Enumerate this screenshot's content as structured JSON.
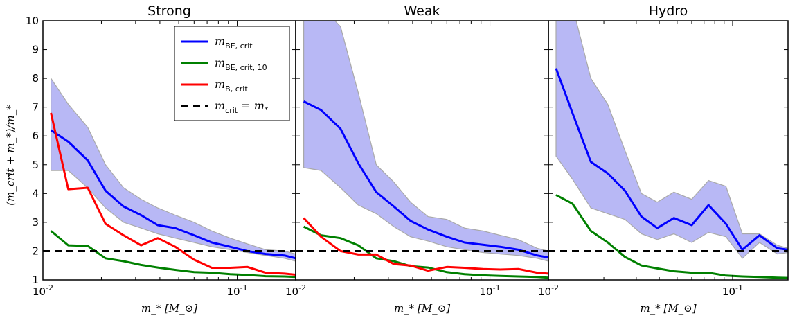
{
  "y_axis_label": "(m_crit + m_*)/m_*",
  "x_axis_label": "m_* [M_⊙]",
  "legend": {
    "entries": [
      {
        "label_main": "m",
        "label_sub": "BE, crit",
        "color": "#0000ff",
        "dashed": false
      },
      {
        "label_main": "m",
        "label_sub": "BE, crit, 10",
        "color": "#008000",
        "dashed": false
      },
      {
        "label_main": "m",
        "label_sub": "B, crit",
        "color": "#ff0000",
        "dashed": false
      },
      {
        "label_main": "m",
        "label_sub": "crit",
        "label_tail": " = m",
        "label_tail_sub": "*",
        "color": "#000000",
        "dashed": true
      }
    ],
    "placement": "top-right of first panel"
  },
  "colors": {
    "band": "#b8b8f5",
    "band_edge": "#a9a9a9"
  },
  "chart_data": [
    {
      "type": "line",
      "title": "Strong",
      "x_scale": "log",
      "xlim": [
        0.01,
        0.2
      ],
      "ylim": [
        1,
        10
      ],
      "x_ticks": [
        {
          "value": 0.01,
          "label": "10",
          "exp": "-2"
        },
        {
          "value": 0.1,
          "label": "10",
          "exp": "-1"
        }
      ],
      "y_ticks": [
        1,
        2,
        3,
        4,
        5,
        6,
        7,
        8,
        9,
        10
      ],
      "band": {
        "x": [
          0.011,
          0.0135,
          0.017,
          0.021,
          0.026,
          0.032,
          0.039,
          0.048,
          0.06,
          0.074,
          0.092,
          0.113,
          0.14,
          0.175,
          0.2
        ],
        "upper": [
          8.0,
          7.1,
          6.3,
          5.0,
          4.2,
          3.8,
          3.5,
          3.25,
          3.0,
          2.7,
          2.45,
          2.25,
          2.05,
          2.0,
          1.9
        ],
        "lower": [
          4.8,
          4.8,
          4.2,
          3.5,
          3.0,
          2.8,
          2.6,
          2.45,
          2.3,
          2.15,
          2.05,
          1.95,
          1.85,
          1.75,
          1.65
        ]
      },
      "series": [
        {
          "name": "m_BE,crit",
          "color": "#0000ff",
          "x": [
            0.011,
            0.0135,
            0.017,
            0.021,
            0.026,
            0.032,
            0.039,
            0.048,
            0.06,
            0.074,
            0.092,
            0.113,
            0.14,
            0.175,
            0.2
          ],
          "y": [
            6.2,
            5.8,
            5.15,
            4.1,
            3.55,
            3.25,
            2.9,
            2.8,
            2.55,
            2.3,
            2.15,
            2.0,
            1.9,
            1.85,
            1.75
          ]
        },
        {
          "name": "m_BE,crit,10",
          "color": "#008000",
          "x": [
            0.011,
            0.0135,
            0.017,
            0.021,
            0.026,
            0.032,
            0.039,
            0.048,
            0.06,
            0.074,
            0.092,
            0.113,
            0.14,
            0.175,
            0.2
          ],
          "y": [
            2.7,
            2.2,
            2.18,
            1.75,
            1.65,
            1.52,
            1.43,
            1.35,
            1.27,
            1.25,
            1.2,
            1.17,
            1.13,
            1.12,
            1.1
          ]
        },
        {
          "name": "m_B,crit",
          "color": "#ff0000",
          "x": [
            0.011,
            0.0135,
            0.017,
            0.021,
            0.026,
            0.032,
            0.039,
            0.048,
            0.06,
            0.074,
            0.092,
            0.113,
            0.14,
            0.175,
            0.2
          ],
          "y": [
            6.8,
            4.15,
            4.2,
            2.95,
            2.55,
            2.2,
            2.45,
            2.15,
            1.7,
            1.42,
            1.42,
            1.45,
            1.25,
            1.22,
            1.18
          ]
        }
      ],
      "hline": {
        "y": 2.0,
        "style": "dashed",
        "color": "#000000"
      }
    },
    {
      "type": "line",
      "title": "Weak",
      "x_scale": "log",
      "xlim": [
        0.01,
        0.2
      ],
      "ylim": [
        1,
        10
      ],
      "x_ticks": [
        {
          "value": 0.01,
          "label": "10",
          "exp": "-2"
        },
        {
          "value": 0.1,
          "label": "10",
          "exp": "-1"
        }
      ],
      "y_ticks": [
        1,
        2,
        3,
        4,
        5,
        6,
        7,
        8,
        9,
        10
      ],
      "band": {
        "x": [
          0.011,
          0.0135,
          0.017,
          0.021,
          0.026,
          0.032,
          0.039,
          0.048,
          0.06,
          0.074,
          0.092,
          0.113,
          0.14,
          0.175,
          0.2
        ],
        "upper": [
          10.5,
          10.5,
          9.8,
          7.5,
          5.0,
          4.4,
          3.7,
          3.2,
          3.1,
          2.8,
          2.7,
          2.55,
          2.4,
          2.1,
          2.0
        ],
        "lower": [
          4.9,
          4.8,
          4.2,
          3.6,
          3.3,
          2.85,
          2.5,
          2.35,
          2.15,
          2.05,
          1.95,
          1.9,
          1.85,
          1.75,
          1.65
        ]
      },
      "series": [
        {
          "name": "m_BE,crit",
          "color": "#0000ff",
          "x": [
            0.011,
            0.0135,
            0.017,
            0.021,
            0.026,
            0.032,
            0.039,
            0.048,
            0.06,
            0.074,
            0.092,
            0.113,
            0.14,
            0.175,
            0.2
          ],
          "y": [
            7.2,
            6.9,
            6.25,
            5.05,
            4.05,
            3.55,
            3.05,
            2.75,
            2.5,
            2.3,
            2.22,
            2.15,
            2.05,
            1.85,
            1.78
          ]
        },
        {
          "name": "m_BE,crit,10",
          "color": "#008000",
          "x": [
            0.011,
            0.0135,
            0.017,
            0.021,
            0.026,
            0.032,
            0.039,
            0.048,
            0.06,
            0.074,
            0.092,
            0.113,
            0.14,
            0.175,
            0.2
          ],
          "y": [
            2.85,
            2.55,
            2.45,
            2.2,
            1.75,
            1.65,
            1.48,
            1.43,
            1.27,
            1.2,
            1.16,
            1.14,
            1.12,
            1.1,
            1.08
          ]
        },
        {
          "name": "m_B,crit",
          "color": "#ff0000",
          "x": [
            0.011,
            0.0135,
            0.017,
            0.021,
            0.026,
            0.032,
            0.039,
            0.048,
            0.06,
            0.074,
            0.092,
            0.113,
            0.14,
            0.175,
            0.2
          ],
          "y": [
            3.15,
            2.5,
            2.0,
            1.88,
            1.88,
            1.55,
            1.5,
            1.32,
            1.45,
            1.42,
            1.38,
            1.36,
            1.38,
            1.25,
            1.22
          ]
        }
      ],
      "hline": {
        "y": 2.0,
        "style": "dashed",
        "color": "#000000"
      }
    },
    {
      "type": "line",
      "title": "Hydro",
      "x_scale": "log",
      "xlim": [
        0.01,
        0.2
      ],
      "ylim": [
        1,
        10
      ],
      "x_ticks": [
        {
          "value": 0.01,
          "label": "10",
          "exp": "-2"
        },
        {
          "value": 0.1,
          "label": "10",
          "exp": "-1"
        }
      ],
      "y_ticks": [
        1,
        2,
        3,
        4,
        5,
        6,
        7,
        8,
        9,
        10
      ],
      "band": {
        "x": [
          0.011,
          0.0135,
          0.017,
          0.021,
          0.026,
          0.032,
          0.039,
          0.048,
          0.06,
          0.074,
          0.092,
          0.113,
          0.14,
          0.175,
          0.2
        ],
        "upper": [
          10.5,
          10.5,
          8.0,
          7.1,
          5.5,
          4.0,
          3.7,
          4.05,
          3.8,
          4.45,
          4.25,
          2.6,
          2.6,
          2.2,
          2.1
        ],
        "lower": [
          5.3,
          4.5,
          3.5,
          3.3,
          3.1,
          2.6,
          2.4,
          2.6,
          2.3,
          2.65,
          2.5,
          1.75,
          2.3,
          1.9,
          1.95
        ]
      },
      "series": [
        {
          "name": "m_BE,crit",
          "color": "#0000ff",
          "x": [
            0.011,
            0.0135,
            0.017,
            0.021,
            0.026,
            0.032,
            0.039,
            0.048,
            0.06,
            0.074,
            0.092,
            0.113,
            0.14,
            0.175,
            0.2
          ],
          "y": [
            8.35,
            6.8,
            5.1,
            4.7,
            4.1,
            3.2,
            2.8,
            3.15,
            2.9,
            3.6,
            2.95,
            2.05,
            2.55,
            2.1,
            2.05
          ]
        },
        {
          "name": "m_BE,crit,10",
          "color": "#008000",
          "x": [
            0.011,
            0.0135,
            0.017,
            0.021,
            0.026,
            0.032,
            0.039,
            0.048,
            0.06,
            0.074,
            0.092,
            0.113,
            0.14,
            0.175,
            0.2
          ],
          "y": [
            3.95,
            3.65,
            2.7,
            2.3,
            1.8,
            1.5,
            1.4,
            1.3,
            1.25,
            1.25,
            1.15,
            1.12,
            1.1,
            1.08,
            1.07
          ]
        }
      ],
      "hline": {
        "y": 2.0,
        "style": "dashed",
        "color": "#000000"
      }
    }
  ]
}
